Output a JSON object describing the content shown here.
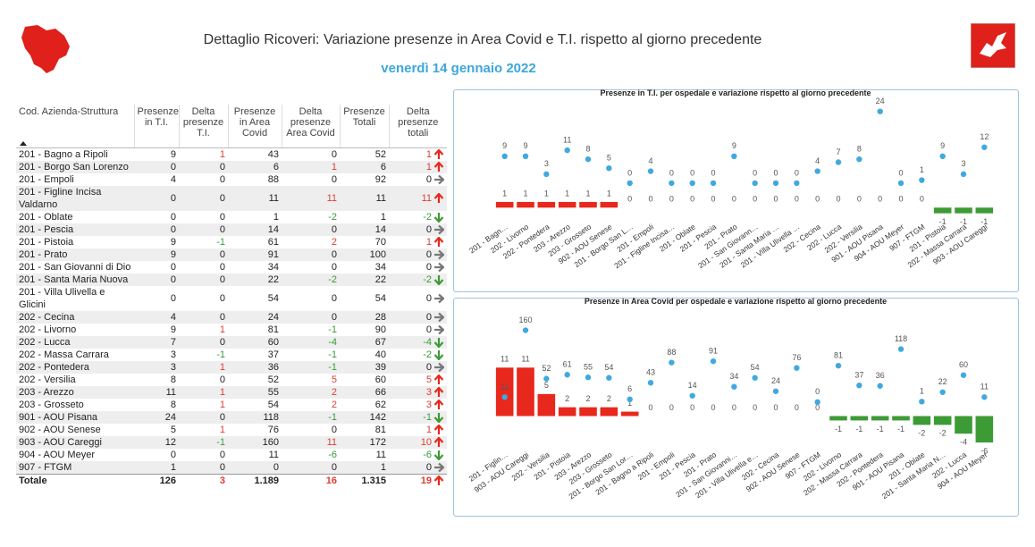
{
  "header": {
    "title": "Dettaglio Ricoveri: Variazione presenze in Area Covid e T.I. rispetto al giorno precedente",
    "date": "venerdì 14 gennaio 2022"
  },
  "table": {
    "columns": [
      "Cod. Azienda-Struttura",
      "Presenze in T.I.",
      "Delta presenze T.I.",
      "Presenze in Area Covid",
      "Delta presenze Area Covid",
      "Presenze Totali",
      "Delta presenze totali"
    ],
    "rows": [
      [
        "201 - Bagno a Ripoli",
        9,
        1,
        43,
        0,
        52,
        1
      ],
      [
        "201 - Borgo San Lorenzo",
        0,
        0,
        6,
        1,
        6,
        1
      ],
      [
        "201 - Empoli",
        4,
        0,
        88,
        0,
        92,
        0
      ],
      [
        "201 - Figline Incisa Valdarno",
        0,
        0,
        11,
        11,
        11,
        11
      ],
      [
        "201 - Oblate",
        0,
        0,
        1,
        -2,
        1,
        -2
      ],
      [
        "201 - Pescia",
        0,
        0,
        14,
        0,
        14,
        0
      ],
      [
        "201 - Pistoia",
        9,
        -1,
        61,
        2,
        70,
        1
      ],
      [
        "201 - Prato",
        9,
        0,
        91,
        0,
        100,
        0
      ],
      [
        "201 - San Giovanni di Dio",
        0,
        0,
        34,
        0,
        34,
        0
      ],
      [
        "201 - Santa Maria Nuova",
        0,
        0,
        22,
        -2,
        22,
        -2
      ],
      [
        "201 - Villa Ulivella e Glicini",
        0,
        0,
        54,
        0,
        54,
        0
      ],
      [
        "202 - Cecina",
        4,
        0,
        24,
        0,
        28,
        0
      ],
      [
        "202 - Livorno",
        9,
        1,
        81,
        -1,
        90,
        0
      ],
      [
        "202 - Lucca",
        7,
        0,
        60,
        -4,
        67,
        -4
      ],
      [
        "202 - Massa Carrara",
        3,
        -1,
        37,
        -1,
        40,
        -2
      ],
      [
        "202 - Pontedera",
        3,
        1,
        36,
        -1,
        39,
        0
      ],
      [
        "202 - Versilia",
        8,
        0,
        52,
        5,
        60,
        5
      ],
      [
        "203 - Arezzo",
        11,
        1,
        55,
        2,
        66,
        3
      ],
      [
        "203 - Grosseto",
        8,
        1,
        54,
        2,
        62,
        3
      ],
      [
        "901 - AOU Pisana",
        24,
        0,
        118,
        -1,
        142,
        -1
      ],
      [
        "902 - AOU Senese",
        5,
        1,
        76,
        0,
        81,
        1
      ],
      [
        "903 - AOU Careggi",
        12,
        -1,
        160,
        11,
        172,
        10
      ],
      [
        "904 - AOU Meyer",
        0,
        0,
        11,
        -6,
        11,
        -6
      ],
      [
        "907 - FTGM",
        1,
        0,
        0,
        0,
        1,
        0
      ]
    ],
    "total": [
      "Totale",
      126,
      3,
      "1.189",
      16,
      "1.315",
      19
    ]
  },
  "chart_data": [
    {
      "type": "combo",
      "title": "Presenze in T.I. per ospedale e variazione rispetto al giorno precedente",
      "categories": [
        "201 - Bagn…",
        "202 - Livorno",
        "202 - Pontedera",
        "203 - Arezzo",
        "203 - Grosseto",
        "902 - AOU Senese",
        "201 - Borgo San L…",
        "201 - Empoli",
        "201 - Figline Incisa…",
        "201 - Oblate",
        "201 - Pescia",
        "201 - Prato",
        "201 - San Giovann…",
        "201 - Santa Maria …",
        "201 - Villa Ulivella …",
        "202 - Cecina",
        "202 - Lucca",
        "202 - Versilia",
        "901 - AOU Pisana",
        "904 - AOU Meyer",
        "907 - FTGM",
        "201 - Pistoia",
        "202 - Massa Carrara",
        "903 - AOU Careggi"
      ],
      "series": [
        {
          "type": "dot",
          "color": "#3fa9e0",
          "values": [
            9,
            9,
            3,
            11,
            8,
            5,
            0,
            4,
            0,
            0,
            0,
            9,
            0,
            0,
            0,
            4,
            7,
            8,
            24,
            0,
            1,
            9,
            3,
            12
          ]
        },
        {
          "type": "bar",
          "axis": "y2",
          "color": "#e8281c",
          "negative_color": "#3d9b35",
          "values": [
            1,
            1,
            1,
            1,
            1,
            1,
            0,
            0,
            0,
            0,
            0,
            0,
            0,
            0,
            0,
            0,
            0,
            0,
            0,
            0,
            0,
            -1,
            -1,
            -1
          ]
        }
      ],
      "ylim": [
        -12,
        26
      ],
      "y2lim": [
        -2,
        18
      ]
    },
    {
      "type": "combo",
      "title": "Presenze in Area Covid per ospedale e variazione rispetto al giorno precedente",
      "categories": [
        "201 - Figlin…",
        "903 - AOU Careggi",
        "202 - Versilia",
        "201 - Pistoia",
        "203 - Arezzo",
        "203 - Grosseto",
        "201 - Borgo San Lor…",
        "201 - Bagno a Ripoli",
        "201 - Empoli",
        "201 - Pescia",
        "201 - Prato",
        "201 - San Giovanni…",
        "201 - Villa Ulivella e…",
        "202 - Cecina",
        "902 - AOU Senese",
        "907 - FTGM",
        "202 - Livorno",
        "202 - Massa Carrara",
        "202 - Pontedera",
        "901 - AOU Pisana",
        "201 - Oblate",
        "201 - Santa Maria N…",
        "202 - Lucca",
        "904 - AOU Meyer"
      ],
      "series": [
        {
          "type": "dot",
          "color": "#3fa9e0",
          "values": [
            11,
            160,
            52,
            61,
            55,
            54,
            6,
            43,
            88,
            14,
            91,
            34,
            54,
            24,
            76,
            0,
            81,
            37,
            36,
            118,
            1,
            22,
            60,
            11
          ]
        },
        {
          "type": "bar",
          "axis": "y2",
          "color": "#e8281c",
          "negative_color": "#3d9b35",
          "values": [
            11,
            11,
            5,
            2,
            2,
            2,
            1,
            0,
            0,
            0,
            0,
            0,
            0,
            0,
            0,
            0,
            -1,
            -1,
            -1,
            -1,
            -2,
            -2,
            -4,
            -6
          ]
        }
      ],
      "ylim": [
        -100,
        175
      ],
      "y2lim": [
        -7,
        21
      ]
    }
  ]
}
